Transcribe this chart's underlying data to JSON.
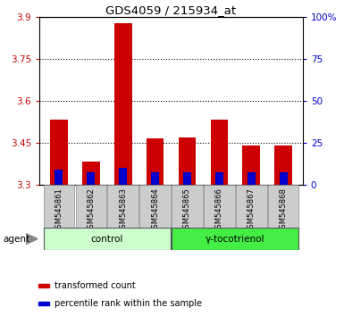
{
  "title": "GDS4059 / 215934_at",
  "samples": [
    "GSM545861",
    "GSM545862",
    "GSM545863",
    "GSM545864",
    "GSM545865",
    "GSM545866",
    "GSM545867",
    "GSM545868"
  ],
  "red_values": [
    3.535,
    3.385,
    3.88,
    3.465,
    3.47,
    3.535,
    3.44,
    3.44
  ],
  "blue_values": [
    3.355,
    3.345,
    3.36,
    3.345,
    3.345,
    3.345,
    3.345,
    3.345
  ],
  "bar_base": 3.3,
  "ylim": [
    3.3,
    3.9
  ],
  "yticks_left": [
    3.3,
    3.45,
    3.6,
    3.75,
    3.9
  ],
  "yticks_right": [
    0,
    25,
    50,
    75,
    100
  ],
  "ytick_labels_right": [
    "0",
    "25",
    "50",
    "75",
    "100%"
  ],
  "groups": [
    {
      "label": "control",
      "indices": [
        0,
        1,
        2,
        3
      ],
      "color": "#ccffcc"
    },
    {
      "label": "γ-tocotrienol",
      "indices": [
        4,
        5,
        6,
        7
      ],
      "color": "#44ee44"
    }
  ],
  "red_color": "#cc0000",
  "blue_color": "#0000cc",
  "left_tick_color": "#cc0000",
  "right_tick_color": "#0000cc",
  "grid_color": "#000000",
  "sample_bg_color": "#cccccc",
  "agent_label": "agent",
  "legend_items": [
    {
      "color": "#cc0000",
      "label": "transformed count"
    },
    {
      "color": "#0000cc",
      "label": "percentile rank within the sample"
    }
  ]
}
